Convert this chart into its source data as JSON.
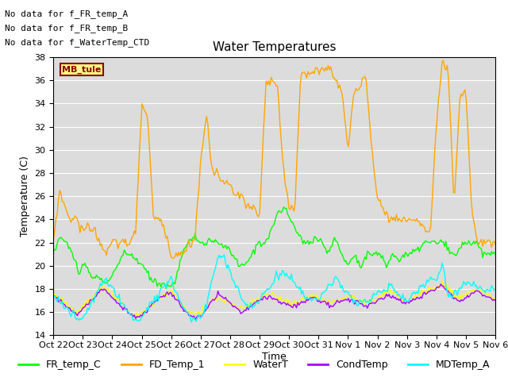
{
  "title": "Water Temperatures",
  "xlabel": "Time",
  "ylabel": "Temperature (C)",
  "ylim": [
    14,
    38
  ],
  "yticks": [
    14,
    16,
    18,
    20,
    22,
    24,
    26,
    28,
    30,
    32,
    34,
    36,
    38
  ],
  "background_color": "#dcdcdc",
  "annotations": [
    "No data for f_FR_temp_A",
    "No data for f_FR_temp_B",
    "No data for f_WaterTemp_CTD"
  ],
  "mb_tule_label": "MB_tule",
  "legend_entries": [
    "FR_temp_C",
    "FD_Temp_1",
    "WaterT",
    "CondTemp",
    "MDTemp_A"
  ],
  "legend_colors": [
    "#00ff00",
    "#ffa500",
    "#ffff00",
    "#aa00ff",
    "#00ffff"
  ],
  "x_tick_labels": [
    "Oct 22",
    "Oct 23",
    "Oct 24",
    "Oct 25",
    "Oct 26",
    "Oct 27",
    "Oct 28",
    "Oct 29",
    "Oct 30",
    "Oct 31",
    "Nov 1",
    "Nov 2",
    "Nov 3",
    "Nov 4",
    "Nov 5",
    "Nov 6"
  ],
  "num_points": 350,
  "title_fontsize": 11,
  "axis_label_fontsize": 9,
  "tick_fontsize": 8,
  "legend_fontsize": 9,
  "ann_fontsize": 8
}
